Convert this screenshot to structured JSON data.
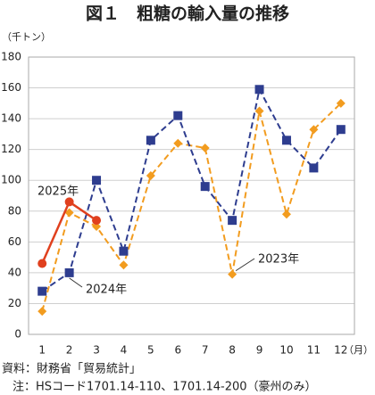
{
  "chart_data": {
    "type": "line",
    "title": "図１　粗糖の輸入量の推移",
    "y_label": "（千トン）",
    "x_label": "（月）",
    "categories": [
      "1",
      "2",
      "3",
      "4",
      "5",
      "6",
      "7",
      "8",
      "9",
      "10",
      "11",
      "12"
    ],
    "series": [
      {
        "name": "2024年",
        "color": "#2e3d8f",
        "marker": "square",
        "dashed": true,
        "values": [
          28,
          40,
          100,
          54,
          126,
          142,
          96,
          74,
          159,
          126,
          108,
          133
        ]
      },
      {
        "name": "2023年",
        "color": "#f29c1f",
        "marker": "diamond",
        "dashed": true,
        "values": [
          15,
          79,
          70,
          45,
          103,
          124,
          121,
          39,
          145,
          78,
          133,
          150
        ]
      },
      {
        "name": "2025年",
        "color": "#e0401e",
        "marker": "circle",
        "dashed": false,
        "values": [
          46,
          86,
          74,
          null,
          null,
          null,
          null,
          null,
          null,
          null,
          null,
          null
        ]
      }
    ],
    "ylim": [
      0,
      180
    ],
    "yticks": [
      0,
      20,
      40,
      60,
      80,
      100,
      120,
      140,
      160,
      180
    ],
    "grid": true,
    "notes": [
      "資料：財務省「貿易統計」",
      "注：HSコード1701.14-110、1701.14-200（豪州のみ）"
    ]
  }
}
